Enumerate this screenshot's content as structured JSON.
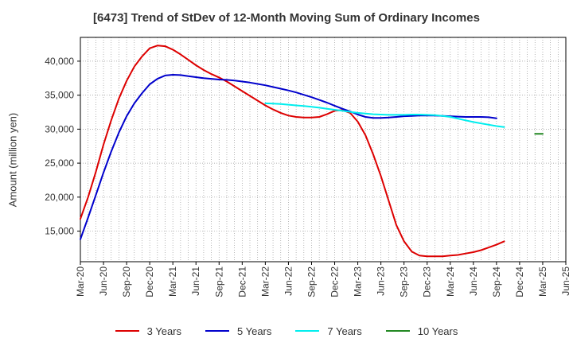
{
  "chart_data": {
    "type": "line",
    "title": "[6473]  Trend of StDev of 12-Month Moving Sum of Ordinary Incomes",
    "ylabel": "Amount (million yen)",
    "xlabel": "",
    "x_ticks": [
      "Mar-20",
      "Jun-20",
      "Sep-20",
      "Dec-20",
      "Mar-21",
      "Jun-21",
      "Sep-21",
      "Dec-21",
      "Mar-22",
      "Jun-22",
      "Sep-22",
      "Dec-22",
      "Mar-23",
      "Jun-23",
      "Sep-23",
      "Dec-23",
      "Mar-24",
      "Jun-24",
      "Sep-24",
      "Dec-24",
      "Mar-25",
      "Jun-25"
    ],
    "y_ticks": [
      15000,
      20000,
      25000,
      30000,
      35000,
      40000
    ],
    "y_tick_labels": [
      "15,000",
      "20,000",
      "25,000",
      "30,000",
      "35,000",
      "40,000"
    ],
    "ylim": [
      10500,
      43500
    ],
    "grid": true,
    "legend_position": "bottom",
    "series": [
      {
        "name": "3 Years",
        "color": "#dd0000",
        "start": "Mar-20",
        "values": [
          16800,
          20000,
          23700,
          27700,
          31300,
          34500,
          37100,
          39200,
          40700,
          41900,
          42300,
          42200,
          41700,
          41000,
          40200,
          39400,
          38700,
          38100,
          37600,
          37000,
          36300,
          35600,
          34900,
          34200,
          33500,
          32900,
          32400,
          32000,
          31800,
          31700,
          31700,
          31800,
          32200,
          32700,
          32800,
          32400,
          31100,
          29100,
          26300,
          23100,
          19500,
          15900,
          13500,
          12000,
          11400,
          11300,
          11300,
          11300,
          11400,
          11500,
          11700,
          11900,
          12200,
          12600,
          13000,
          13500
        ]
      },
      {
        "name": "5 Years",
        "color": "#0000cc",
        "start": "Mar-20",
        "values": [
          13800,
          17000,
          20300,
          23600,
          26700,
          29500,
          31900,
          33800,
          35300,
          36600,
          37400,
          37900,
          38000,
          37950,
          37800,
          37650,
          37500,
          37400,
          37300,
          37250,
          37150,
          37000,
          36850,
          36650,
          36450,
          36200,
          35950,
          35700,
          35400,
          35050,
          34700,
          34300,
          33900,
          33450,
          33000,
          32600,
          32150,
          31800,
          31650,
          31650,
          31700,
          31800,
          31900,
          31950,
          32000,
          32000,
          32000,
          31950,
          31900,
          31850,
          31800,
          31800,
          31800,
          31750,
          31600
        ]
      },
      {
        "name": "7 Years",
        "color": "#00eeee",
        "start": "Mar-22",
        "values": [
          33800,
          33750,
          33700,
          33600,
          33500,
          33400,
          33300,
          33150,
          33000,
          32850,
          32700,
          32550,
          32400,
          32300,
          32200,
          32150,
          32100,
          32100,
          32100,
          32150,
          32150,
          32100,
          32050,
          31950,
          31800,
          31550,
          31300,
          31050,
          30850,
          30650,
          30450,
          30300
        ]
      },
      {
        "name": "10 Years",
        "color": "#228822",
        "start": "Feb-25",
        "values": [
          29300,
          29300
        ]
      }
    ]
  }
}
